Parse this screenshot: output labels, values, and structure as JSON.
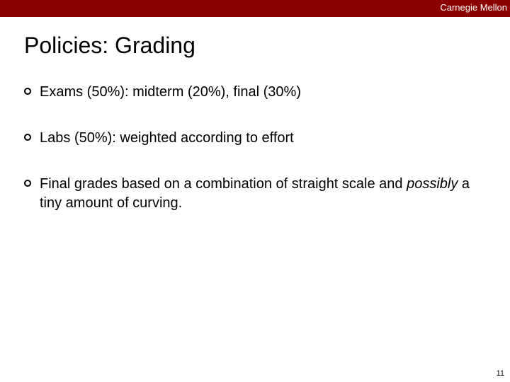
{
  "header": {
    "brand": "Carnegie Mellon",
    "bar_color": "#8b0000",
    "text_color": "#ffffff"
  },
  "title": "Policies: Grading",
  "bullets": [
    {
      "segments": [
        {
          "text": "Exams (50%): midterm (20%), final (30%)",
          "italic": false
        }
      ]
    },
    {
      "segments": [
        {
          "text": "Labs (50%): weighted according to effort",
          "italic": false
        }
      ]
    },
    {
      "segments": [
        {
          "text": "Final grades based on a combination of straight scale and ",
          "italic": false
        },
        {
          "text": "possibly",
          "italic": true
        },
        {
          "text": " a tiny amount of curving.",
          "italic": false
        }
      ]
    }
  ],
  "page_number": "11",
  "style": {
    "title_fontsize": 32,
    "body_fontsize": 20,
    "bullet_marker": "hollow-circle",
    "background_color": "#ffffff",
    "text_color": "#000000"
  }
}
